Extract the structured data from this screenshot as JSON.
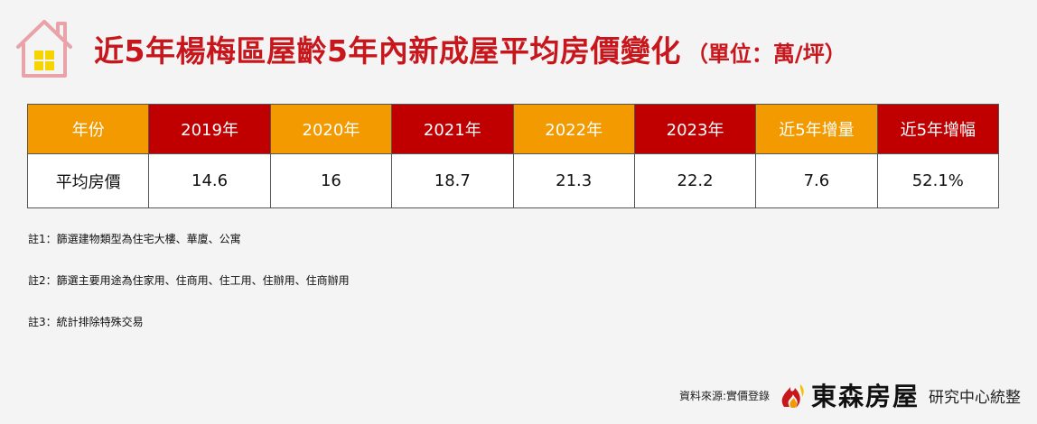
{
  "header": {
    "title": "近5年楊梅區屋齡5年內新成屋平均房價變化",
    "unit": "（單位：萬/坪）"
  },
  "table": {
    "headers": [
      "年份",
      "2019年",
      "2020年",
      "2021年",
      "2022年",
      "2023年",
      "近5年增量",
      "近5年增幅"
    ],
    "rows": [
      [
        "平均房價",
        "14.6",
        "16",
        "18.7",
        "21.3",
        "22.2",
        "7.6",
        "52.1%"
      ]
    ]
  },
  "notes": [
    "註1：篩選建物類型為住宅大樓、華廈、公寓",
    "註2：篩選主要用途為住家用、住商用、住工用、住辦用、住商辦用",
    "註3：統計排除特殊交易"
  ],
  "footer": {
    "source": "資料來源:實價登錄",
    "brand": "東森房屋",
    "org": "研究中心統整"
  },
  "colors": {
    "title": "#c8161d",
    "header_orange": "#f29a00",
    "header_red": "#c00000",
    "highlight_value": "#e02020",
    "background": "#f4f4f4"
  },
  "icons": {
    "house": "house-icon",
    "logo": "flame-logo-icon"
  }
}
